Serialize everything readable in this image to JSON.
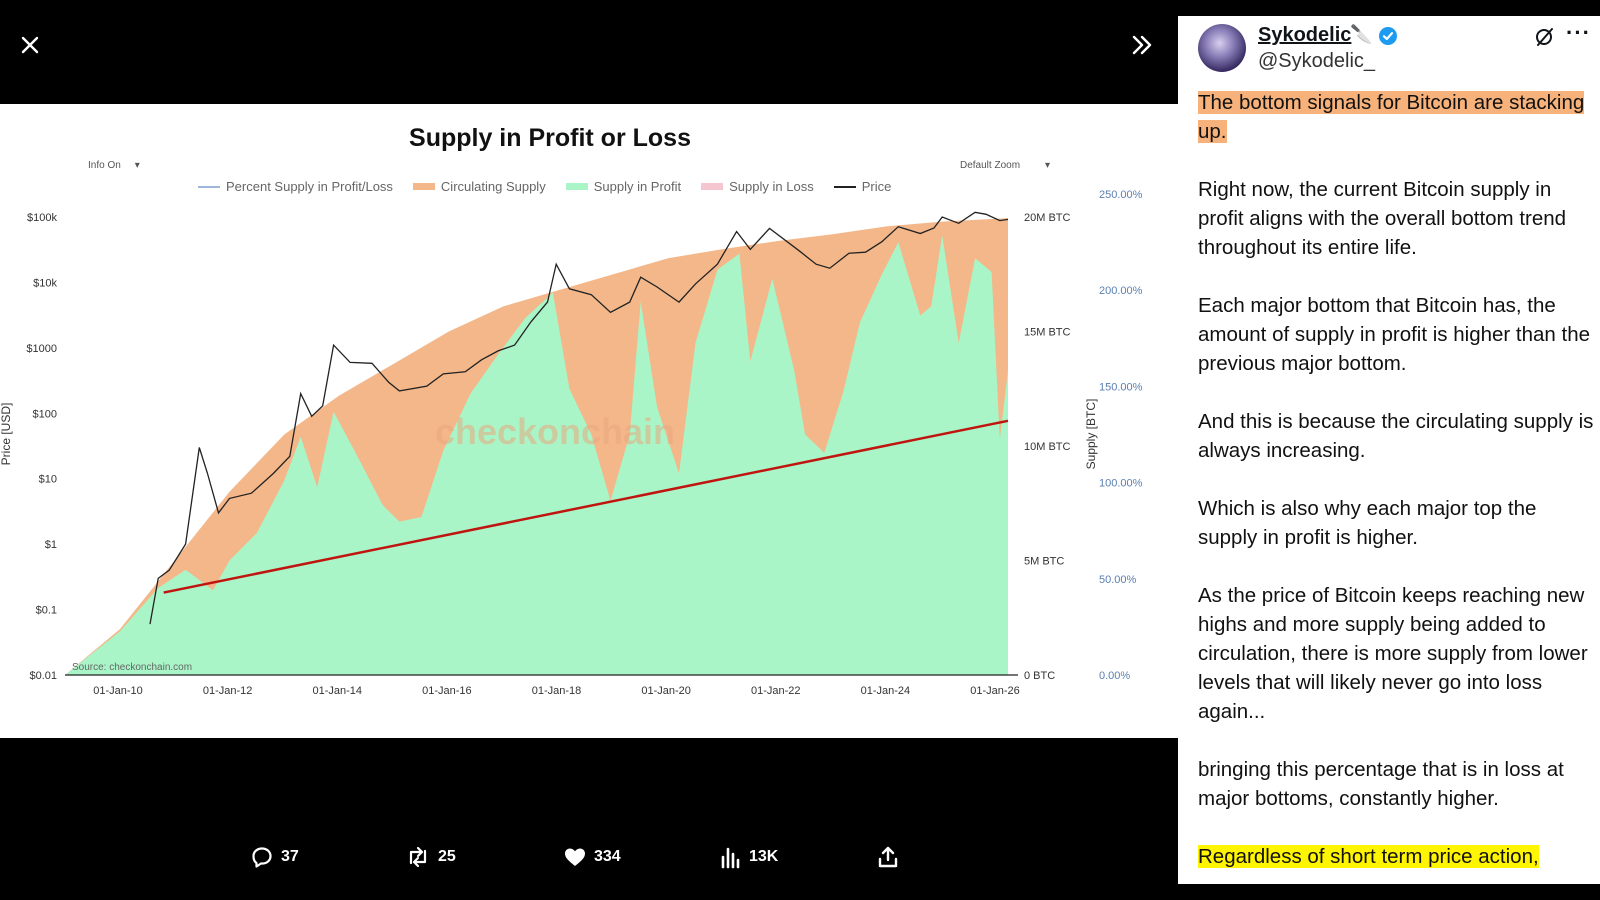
{
  "viewer": {
    "close_icon": "close-icon",
    "expand_icon": "chevrons-right-icon"
  },
  "chart_controls": {
    "info": "Info On",
    "zoom": "Default Zoom"
  },
  "chart_data": {
    "type": "area",
    "title": "Supply in Profit or Loss",
    "legend": [
      {
        "name": "Percent Supply in Profit/Loss",
        "color": "#9fb7d8",
        "kind": "line"
      },
      {
        "name": "Circulating Supply",
        "color": "#f3b78a",
        "kind": "area"
      },
      {
        "name": "Supply in Profit",
        "color": "#a9f5c8",
        "kind": "area"
      },
      {
        "name": "Supply in Loss",
        "color": "#f5c6cf",
        "kind": "area"
      },
      {
        "name": "Price",
        "color": "#222222",
        "kind": "line"
      }
    ],
    "ylabel_left": "Price [USD]",
    "ylabel_right": "Supply [BTC]",
    "y_left_ticks": [
      "$100k",
      "$10k",
      "$1000",
      "$100",
      "$10",
      "$1",
      "$0.1",
      "$0.01"
    ],
    "y_right_ticks": [
      "20M BTC",
      "15M BTC",
      "10M BTC",
      "5M BTC",
      "0 BTC"
    ],
    "y_pct_ticks": [
      "250.00%",
      "200.00%",
      "150.00%",
      "100.00%",
      "50.00%",
      "0.00%"
    ],
    "x_ticks": [
      "01-Jan-10",
      "01-Jan-12",
      "01-Jan-14",
      "01-Jan-16",
      "01-Jan-18",
      "01-Jan-20",
      "01-Jan-22",
      "01-Jan-24",
      "01-Jan-26"
    ],
    "x_range": [
      2009.0,
      2026.2
    ],
    "price_log_range": [
      -2,
      5
    ],
    "supply_range": [
      0,
      20000000
    ],
    "circulating_supply": [
      [
        2009.0,
        0
      ],
      [
        2010.0,
        2000000
      ],
      [
        2011.0,
        5000000
      ],
      [
        2012.0,
        8000000
      ],
      [
        2013.0,
        10500000
      ],
      [
        2014.0,
        12200000
      ],
      [
        2015.0,
        13600000
      ],
      [
        2016.0,
        15000000
      ],
      [
        2017.0,
        16100000
      ],
      [
        2018.0,
        16800000
      ],
      [
        2019.0,
        17500000
      ],
      [
        2020.0,
        18200000
      ],
      [
        2021.0,
        18600000
      ],
      [
        2022.0,
        18950000
      ],
      [
        2023.0,
        19250000
      ],
      [
        2024.0,
        19600000
      ],
      [
        2025.0,
        19800000
      ],
      [
        2026.2,
        19950000
      ]
    ],
    "supply_in_profit": [
      [
        2009.0,
        0
      ],
      [
        2010.0,
        1900000
      ],
      [
        2010.7,
        3800000
      ],
      [
        2011.2,
        4600000
      ],
      [
        2011.7,
        3700000
      ],
      [
        2012.0,
        5000000
      ],
      [
        2012.5,
        6200000
      ],
      [
        2013.0,
        8500000
      ],
      [
        2013.3,
        10400000
      ],
      [
        2013.6,
        8200000
      ],
      [
        2013.9,
        11500000
      ],
      [
        2014.3,
        9700000
      ],
      [
        2014.8,
        7400000
      ],
      [
        2015.1,
        6700000
      ],
      [
        2015.5,
        6900000
      ],
      [
        2015.9,
        9800000
      ],
      [
        2016.4,
        12300000
      ],
      [
        2016.9,
        14000000
      ],
      [
        2017.4,
        15600000
      ],
      [
        2017.9,
        16700000
      ],
      [
        2018.2,
        12500000
      ],
      [
        2018.6,
        10500000
      ],
      [
        2018.95,
        7600000
      ],
      [
        2019.3,
        10500000
      ],
      [
        2019.5,
        16300000
      ],
      [
        2019.8,
        11700000
      ],
      [
        2020.2,
        8800000
      ],
      [
        2020.5,
        14500000
      ],
      [
        2020.9,
        17700000
      ],
      [
        2021.3,
        18400000
      ],
      [
        2021.5,
        13700000
      ],
      [
        2021.9,
        17300000
      ],
      [
        2022.3,
        13300000
      ],
      [
        2022.5,
        10500000
      ],
      [
        2022.85,
        9700000
      ],
      [
        2023.2,
        12400000
      ],
      [
        2023.5,
        15400000
      ],
      [
        2023.9,
        17500000
      ],
      [
        2024.2,
        18900000
      ],
      [
        2024.6,
        15700000
      ],
      [
        2024.8,
        16100000
      ],
      [
        2025.0,
        19200000
      ],
      [
        2025.3,
        14500000
      ],
      [
        2025.6,
        18200000
      ],
      [
        2025.9,
        17600000
      ],
      [
        2026.05,
        10300000
      ],
      [
        2026.2,
        13300000
      ]
    ],
    "price": [
      [
        2010.55,
        0.06
      ],
      [
        2010.7,
        0.3
      ],
      [
        2010.9,
        0.4
      ],
      [
        2011.2,
        1
      ],
      [
        2011.45,
        30
      ],
      [
        2011.6,
        12
      ],
      [
        2011.8,
        3
      ],
      [
        2012.0,
        5
      ],
      [
        2012.4,
        6
      ],
      [
        2012.8,
        12
      ],
      [
        2013.1,
        22
      ],
      [
        2013.3,
        200
      ],
      [
        2013.5,
        90
      ],
      [
        2013.7,
        130
      ],
      [
        2013.9,
        1100
      ],
      [
        2014.2,
        600
      ],
      [
        2014.6,
        580
      ],
      [
        2014.9,
        300
      ],
      [
        2015.1,
        220
      ],
      [
        2015.6,
        260
      ],
      [
        2015.9,
        400
      ],
      [
        2016.3,
        430
      ],
      [
        2016.6,
        660
      ],
      [
        2016.9,
        900
      ],
      [
        2017.2,
        1100
      ],
      [
        2017.5,
        2500
      ],
      [
        2017.8,
        5000
      ],
      [
        2017.96,
        19000
      ],
      [
        2018.2,
        8000
      ],
      [
        2018.6,
        6500
      ],
      [
        2018.95,
        3500
      ],
      [
        2019.3,
        5000
      ],
      [
        2019.5,
        12000
      ],
      [
        2019.8,
        8500
      ],
      [
        2020.2,
        5000
      ],
      [
        2020.5,
        9500
      ],
      [
        2020.9,
        19000
      ],
      [
        2021.25,
        60000
      ],
      [
        2021.5,
        32000
      ],
      [
        2021.85,
        67000
      ],
      [
        2022.4,
        30000
      ],
      [
        2022.7,
        19000
      ],
      [
        2022.95,
        16500
      ],
      [
        2023.3,
        28000
      ],
      [
        2023.6,
        29000
      ],
      [
        2023.9,
        42000
      ],
      [
        2024.2,
        71000
      ],
      [
        2024.6,
        56000
      ],
      [
        2024.85,
        68000
      ],
      [
        2025.0,
        100000
      ],
      [
        2025.3,
        80000
      ],
      [
        2025.6,
        118000
      ],
      [
        2025.8,
        110000
      ],
      [
        2026.05,
        88000
      ],
      [
        2026.2,
        92000
      ]
    ],
    "trendline": [
      [
        2010.8,
        3600000
      ],
      [
        2026.2,
        11100000
      ]
    ],
    "watermark": "checkonchain",
    "source": "Source: checkonchain.com",
    "grid": false,
    "legend_position": "top"
  },
  "actions": {
    "replies": "37",
    "reposts": "25",
    "likes": "334",
    "views": "13K"
  },
  "tweet": {
    "author_name": "Sykodelic",
    "author_emoji": "🔪",
    "author_handle": "@Sykodelic_",
    "paragraphs": [
      "The bottom signals for Bitcoin are stacking up.",
      "Right now, the current Bitcoin supply in profit aligns with the overall bottom trend throughout its entire life.",
      "Each major bottom that Bitcoin has, the amount of supply in profit is higher than the previous major bottom.",
      "And this is because the circulating supply is always increasing.",
      "Which is also why each major top the supply in profit is higher.",
      "As the price of Bitcoin keeps reaching new highs and more supply being added to circulation, there is more supply from lower levels that will likely never go into loss again...",
      "bringing this percentage that is in loss at major bottoms, constantly higher.",
      "Regardless of short term price action,"
    ],
    "highlight_orange": "#f6b27a",
    "highlight_yellow": "#fff500"
  }
}
